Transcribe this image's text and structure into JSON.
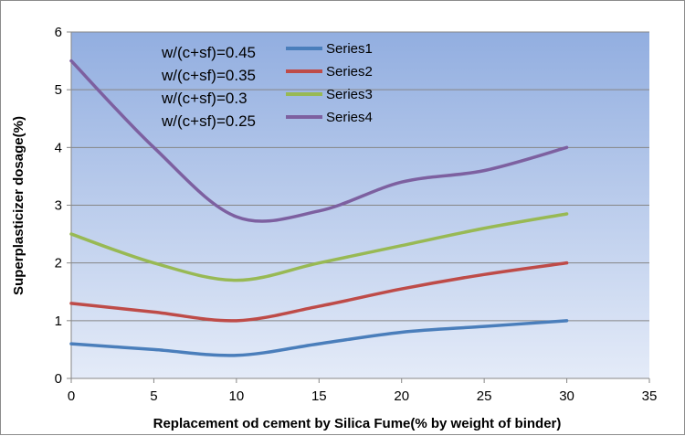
{
  "chart_data": {
    "type": "line",
    "title": "",
    "xlabel": "Replacement od cement by Silica Fume(% by weight of binder)",
    "ylabel": "Superplasticizer dosage(%)",
    "xlim": [
      0,
      35
    ],
    "ylim": [
      0,
      6
    ],
    "xticks": [
      0,
      5,
      10,
      15,
      20,
      25,
      30,
      35
    ],
    "yticks": [
      0,
      1,
      2,
      3,
      4,
      5,
      6
    ],
    "grid": true,
    "legend": "top-center",
    "x": [
      0,
      5,
      10,
      15,
      20,
      25,
      30
    ],
    "series": [
      {
        "name": "Series1",
        "color": "#4a7ebb",
        "values": [
          0.6,
          0.5,
          0.4,
          0.6,
          0.8,
          0.9,
          1.0
        ]
      },
      {
        "name": "Series2",
        "color": "#be4b48",
        "values": [
          1.3,
          1.15,
          1.0,
          1.25,
          1.55,
          1.8,
          2.0
        ]
      },
      {
        "name": "Series3",
        "color": "#98b954",
        "values": [
          2.5,
          2.0,
          1.7,
          2.0,
          2.3,
          2.6,
          2.85
        ]
      },
      {
        "name": "Series4",
        "color": "#7d60a0",
        "values": [
          5.5,
          4.0,
          2.8,
          2.9,
          3.4,
          3.6,
          4.0
        ]
      }
    ],
    "annotations": [
      "w/(c+sf)=0.45",
      "w/(c+sf)=0.35",
      "w/(c+sf)=0.3",
      "w/(c+sf)=0.25"
    ]
  }
}
